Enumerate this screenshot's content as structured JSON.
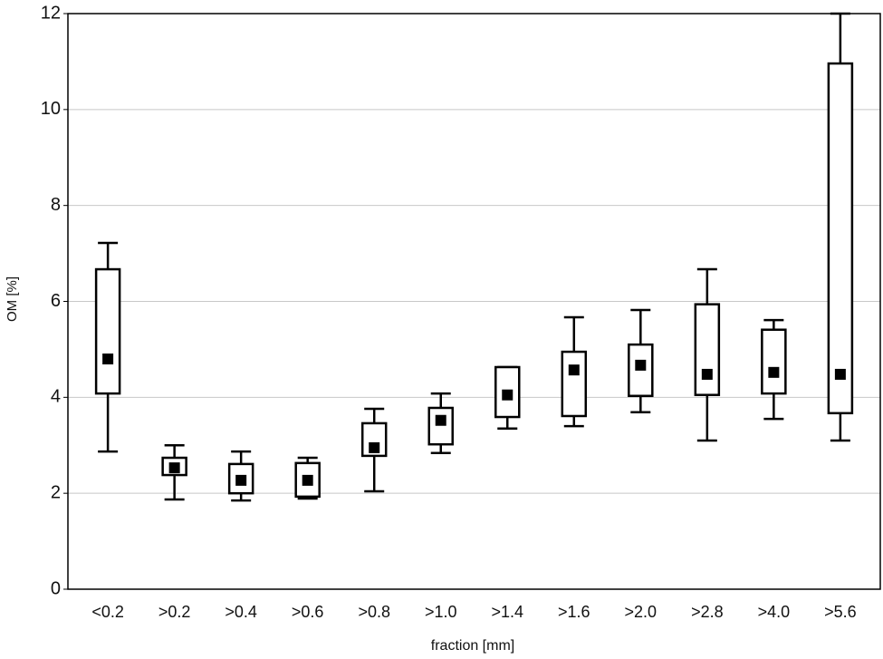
{
  "chart_data": {
    "type": "box",
    "title_y": "OM [%]",
    "title_x": "fraction [mm]",
    "categories": [
      "<0.2",
      ">0.2",
      ">0.4",
      ">0.6",
      ">0.8",
      ">1.0",
      ">1.4",
      ">1.6",
      ">2.0",
      ">2.8",
      ">4.0",
      ">5.6"
    ],
    "min": [
      2.87,
      1.87,
      1.85,
      1.89,
      2.04,
      2.84,
      3.35,
      3.4,
      3.69,
      3.1,
      3.55,
      3.1
    ],
    "q1": [
      4.08,
      2.38,
      2.0,
      1.93,
      2.78,
      3.02,
      3.59,
      3.61,
      4.03,
      4.05,
      4.08,
      3.67
    ],
    "center": [
      4.8,
      2.53,
      2.27,
      2.27,
      2.95,
      3.52,
      4.05,
      4.57,
      4.67,
      4.48,
      4.52,
      4.48
    ],
    "q3": [
      6.67,
      2.74,
      2.61,
      2.63,
      3.46,
      3.78,
      4.63,
      4.95,
      5.1,
      5.94,
      5.41,
      10.96
    ],
    "max": [
      7.22,
      3.0,
      2.87,
      2.74,
      3.76,
      4.08,
      4.63,
      5.67,
      5.82,
      6.67,
      5.61,
      12.0
    ],
    "color": "#000000",
    "ylim": [
      0,
      12
    ],
    "yticks": [
      0,
      2,
      4,
      6,
      8,
      10,
      12
    ],
    "grid": true
  }
}
